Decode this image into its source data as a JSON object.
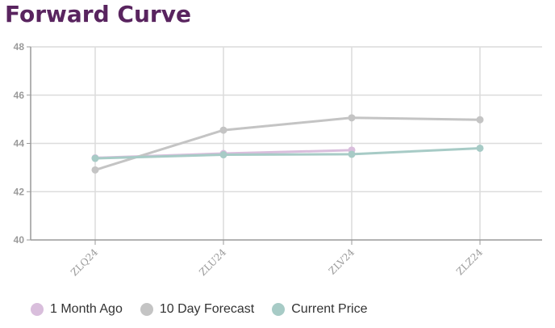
{
  "title": "Forward Curve",
  "colors": {
    "title": "#59245f",
    "grid": "#dcdcdc",
    "axis": "#9a9a9a",
    "tick_text": "#9a9a9a"
  },
  "chart_data": {
    "type": "line",
    "title": "Forward Curve",
    "xlabel": "",
    "ylabel": "",
    "categories": [
      "ZLQ24",
      "ZLU24",
      "ZLV24",
      "ZLZ24"
    ],
    "ylim": [
      40,
      48
    ],
    "yticks": [
      40,
      42,
      44,
      46,
      48
    ],
    "grid": true,
    "legend_position": "bottom-left",
    "series": [
      {
        "name": "1 Month Ago",
        "color": "#d9bedc",
        "values": [
          43.4,
          43.58,
          43.72,
          null
        ]
      },
      {
        "name": "10 Day Forecast",
        "color": "#c4c4c4",
        "values": [
          42.9,
          44.55,
          45.06,
          44.98
        ]
      },
      {
        "name": "Current Price",
        "color": "#a7cbc6",
        "values": [
          43.38,
          43.53,
          43.55,
          43.8
        ]
      }
    ]
  }
}
